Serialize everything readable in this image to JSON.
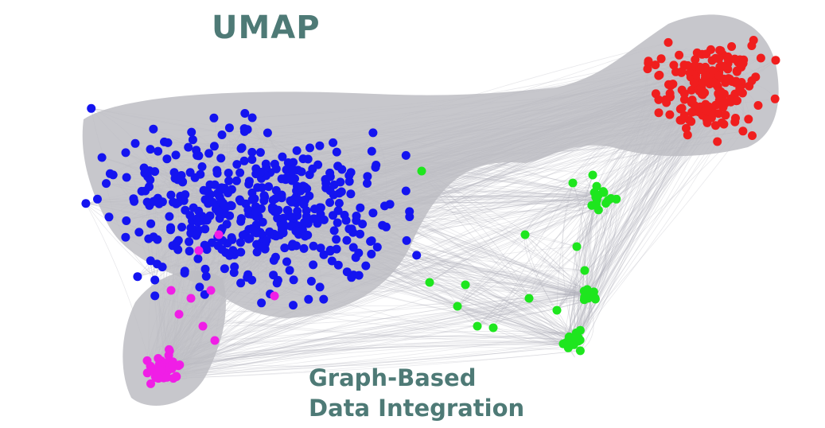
{
  "title": "UMAP",
  "subtitle_line1": "Graph-Based",
  "subtitle_line2": "Data Integration",
  "colors": {
    "title": "#4e7a76",
    "edges": "#b4b4bc",
    "cluster_blue": "#1414f0",
    "cluster_red": "#f01e1e",
    "cluster_green": "#1ee61e",
    "cluster_magenta": "#f01ee6"
  },
  "clusters": [
    {
      "name": "blue",
      "color": "#1414f0"
    },
    {
      "name": "red",
      "color": "#f01e1e"
    },
    {
      "name": "green",
      "color": "#1ee61e"
    },
    {
      "name": "magenta",
      "color": "#f01ee6"
    }
  ]
}
